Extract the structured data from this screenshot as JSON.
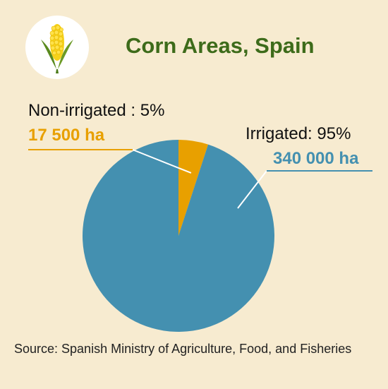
{
  "title": "Corn Areas, Spain",
  "source": "Source: Spanish Ministry of Agriculture, Food, and Fisheries",
  "logo": {
    "icon": "corn-icon"
  },
  "colors": {
    "background": "#f7ebd0",
    "title": "#3d6b1a",
    "irrigated": "#4490b0",
    "non_irrigated": "#e8a000"
  },
  "chart_data": {
    "type": "pie",
    "title": "Corn Areas, Spain",
    "slices": [
      {
        "name": "Non-irrigated",
        "label": "Non-irrigated : 5%",
        "value_label": "17 500 ha",
        "percent": 5,
        "value": 17500
      },
      {
        "name": "Irrigated",
        "label": "Irrigated: 95%",
        "value_label": "340 000 ha",
        "percent": 95,
        "value": 340000
      }
    ]
  }
}
